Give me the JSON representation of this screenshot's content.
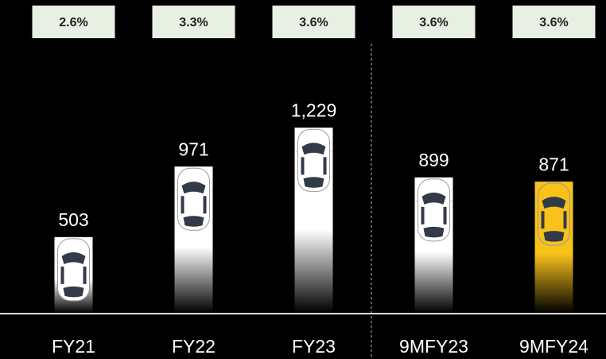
{
  "chart_data": {
    "type": "bar",
    "categories": [
      "FY21",
      "FY22",
      "FY23",
      "9MFY23",
      "9MFY24"
    ],
    "values": [
      503,
      971,
      1229,
      899,
      871
    ],
    "value_labels": [
      "503",
      "971",
      "1,229",
      "899",
      "871"
    ],
    "annotations": [
      "2.6%",
      "3.3%",
      "3.6%",
      "3.6%",
      "3.6%"
    ],
    "colors": [
      "#ffffff",
      "#ffffff",
      "#ffffff",
      "#ffffff",
      "#f7c21a"
    ],
    "ylim": [
      0,
      1300
    ]
  }
}
